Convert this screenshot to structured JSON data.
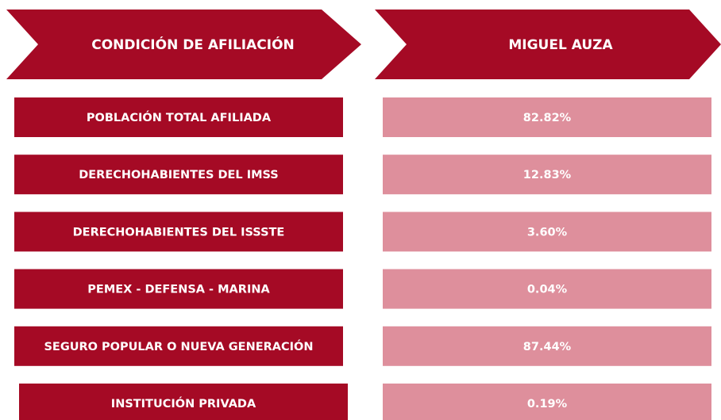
{
  "table": {
    "header": [
      "CONDICIÓN DE AFILIACIÓN",
      "MIGUEL AUZA"
    ],
    "rows": [
      [
        "POBLACIÓN TOTAL AFILIADA",
        "82.82%"
      ],
      [
        "DERECHOHABIENTES DEL IMSS",
        "12.83%"
      ],
      [
        "DERECHOHABIENTES DEL ISSSTE",
        "3.60%"
      ],
      [
        "PEMEX - DEFENSA - MARINA",
        "0.04%"
      ],
      [
        "SEGURO POPULAR O NUEVA GENERACIÓN",
        "87.44%"
      ],
      [
        "INSTITUCIÓN PRIVADA",
        "0.19%"
      ]
    ]
  }
}
